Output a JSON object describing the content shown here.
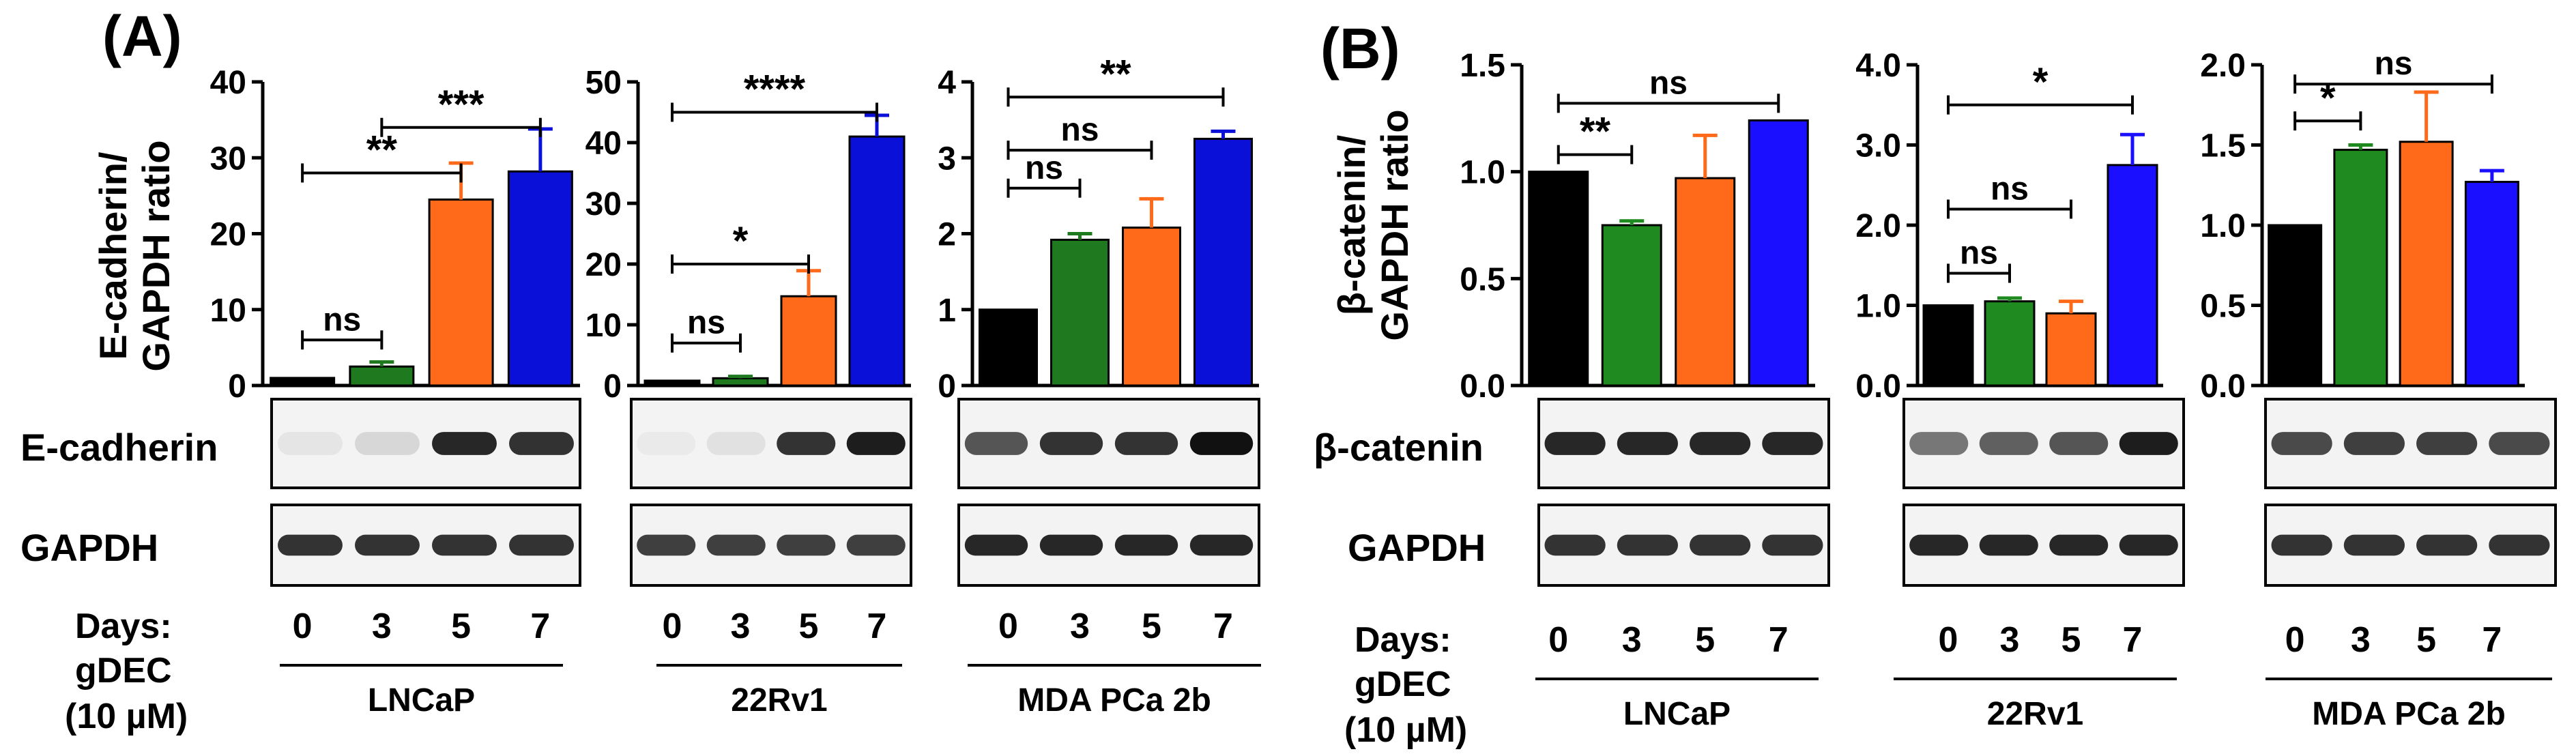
{
  "panel_a_label": "(A)",
  "panel_b_label": "(B)",
  "row_labels": {
    "days": "Days:",
    "gdec": "gDEC",
    "dose": "(10 µM)"
  },
  "blot_labels": {
    "a_protein": "E-cadherin",
    "a_loading": "GAPDH",
    "b_protein": "β-catenin",
    "b_loading": "GAPDH"
  },
  "colors": [
    "#000000",
    "#1f7a1f",
    "#ff6a1a",
    "#0a10d8"
  ],
  "chart_data": [
    {
      "type": "bar",
      "panel": "A",
      "cell_line": "LNCaP",
      "ylabel_line1": "E-cadherin/",
      "ylabel_line2": "GAPDH ratio",
      "categories": [
        "0",
        "3",
        "5",
        "7"
      ],
      "values": [
        1,
        2.5,
        24.5,
        28.2
      ],
      "errors": [
        0,
        0.6,
        4.8,
        5.6
      ],
      "ylim": [
        0,
        40
      ],
      "yticks": [
        "0",
        "10",
        "20",
        "30",
        "40"
      ],
      "bar_colors": [
        "#000000",
        "#1f7a1f",
        "#ff6a1a",
        "#0a10d8"
      ],
      "significance": [
        {
          "from": 0,
          "to": 1,
          "label": "ns",
          "level": 6
        },
        {
          "from": 0,
          "to": 2,
          "label": "**",
          "level": 28
        },
        {
          "from": 1,
          "to": 3,
          "label": "***",
          "level": 34
        }
      ]
    },
    {
      "type": "bar",
      "panel": "A",
      "cell_line": "22Rv1",
      "categories": [
        "0",
        "3",
        "5",
        "7"
      ],
      "values": [
        0.8,
        1.2,
        14.7,
        41.0
      ],
      "errors": [
        0,
        0.3,
        4.2,
        3.5
      ],
      "ylim": [
        0,
        50
      ],
      "yticks": [
        "0",
        "10",
        "20",
        "30",
        "40",
        "50"
      ],
      "bar_colors": [
        "#000000",
        "#1f7a1f",
        "#ff6a1a",
        "#0a10d8"
      ],
      "significance": [
        {
          "from": 0,
          "to": 1,
          "label": "ns",
          "level": 7
        },
        {
          "from": 0,
          "to": 2,
          "label": "*",
          "level": 20
        },
        {
          "from": 0,
          "to": 3,
          "label": "****",
          "level": 45
        }
      ]
    },
    {
      "type": "bar",
      "panel": "A",
      "cell_line": "MDA PCa 2b",
      "categories": [
        "0",
        "3",
        "5",
        "7"
      ],
      "values": [
        1.0,
        1.92,
        2.08,
        3.25
      ],
      "errors": [
        0,
        0.08,
        0.38,
        0.1
      ],
      "ylim": [
        0,
        4
      ],
      "yticks": [
        "0",
        "1",
        "2",
        "3",
        "4"
      ],
      "bar_colors": [
        "#000000",
        "#1f7a1f",
        "#ff6a1a",
        "#0a10d8"
      ],
      "significance": [
        {
          "from": 0,
          "to": 1,
          "label": "ns",
          "level": 2.6
        },
        {
          "from": 0,
          "to": 2,
          "label": "ns",
          "level": 3.1
        },
        {
          "from": 0,
          "to": 3,
          "label": "**",
          "level": 3.8
        }
      ]
    },
    {
      "type": "bar",
      "panel": "B",
      "cell_line": "LNCaP",
      "ylabel_line1": "β-catenin/",
      "ylabel_line2": "GAPDH ratio",
      "categories": [
        "0",
        "3",
        "5",
        "7"
      ],
      "values": [
        1.0,
        0.75,
        0.97,
        1.24
      ],
      "errors": [
        0,
        0.02,
        0.2,
        0
      ],
      "ylim": [
        0,
        1.5
      ],
      "yticks": [
        "0.0",
        "0.5",
        "1.0",
        "1.5"
      ],
      "bar_colors": [
        "#000000",
        "#1f8a1f",
        "#ff6a1a",
        "#1a10ff"
      ],
      "significance": [
        {
          "from": 0,
          "to": 1,
          "label": "**",
          "level": 1.08
        },
        {
          "from": 0,
          "to": 3,
          "label": "ns",
          "level": 1.32
        }
      ]
    },
    {
      "type": "bar",
      "panel": "B",
      "cell_line": "22Rv1",
      "categories": [
        "0",
        "3",
        "5",
        "7"
      ],
      "values": [
        1.0,
        1.05,
        0.9,
        2.75
      ],
      "errors": [
        0,
        0.04,
        0.15,
        0.38
      ],
      "ylim": [
        0,
        4.0
      ],
      "yticks": [
        "0.0",
        "1.0",
        "2.0",
        "3.0",
        "4.0"
      ],
      "bar_colors": [
        "#000000",
        "#1f8a1f",
        "#ff6a1a",
        "#1a10ff"
      ],
      "significance": [
        {
          "from": 0,
          "to": 1,
          "label": "ns",
          "level": 1.4
        },
        {
          "from": 0,
          "to": 2,
          "label": "ns",
          "level": 2.2
        },
        {
          "from": 0,
          "to": 3,
          "label": "*",
          "level": 3.5
        }
      ]
    },
    {
      "type": "bar",
      "panel": "B",
      "cell_line": "MDA PCa 2b",
      "categories": [
        "0",
        "3",
        "5",
        "7"
      ],
      "values": [
        1.0,
        1.47,
        1.52,
        1.27
      ],
      "errors": [
        0,
        0.03,
        0.31,
        0.07
      ],
      "ylim": [
        0,
        2.0
      ],
      "yticks": [
        "0.0",
        "0.5",
        "1.0",
        "1.5",
        "2.0"
      ],
      "bar_colors": [
        "#000000",
        "#1f8a1f",
        "#ff6a1a",
        "#1a10ff"
      ],
      "significance": [
        {
          "from": 0,
          "to": 1,
          "label": "*",
          "level": 1.65
        },
        {
          "from": 0,
          "to": 3,
          "label": "ns",
          "level": 1.88
        }
      ]
    }
  ],
  "blots": [
    {
      "protein": [
        0.06,
        0.12,
        0.9,
        0.86
      ],
      "loading": [
        0.85,
        0.85,
        0.85,
        0.85
      ]
    },
    {
      "protein": [
        0.04,
        0.08,
        0.85,
        0.95
      ],
      "loading": [
        0.8,
        0.8,
        0.8,
        0.8
      ]
    },
    {
      "protein": [
        0.7,
        0.85,
        0.85,
        1.0
      ],
      "loading": [
        0.9,
        0.9,
        0.9,
        0.9
      ]
    },
    {
      "protein": [
        0.9,
        0.9,
        0.9,
        0.9
      ],
      "loading": [
        0.85,
        0.85,
        0.85,
        0.85
      ]
    },
    {
      "protein": [
        0.55,
        0.65,
        0.7,
        0.95
      ],
      "loading": [
        0.9,
        0.9,
        0.9,
        0.9
      ]
    },
    {
      "protein": [
        0.75,
        0.8,
        0.8,
        0.75
      ],
      "loading": [
        0.85,
        0.85,
        0.85,
        0.85
      ]
    }
  ]
}
